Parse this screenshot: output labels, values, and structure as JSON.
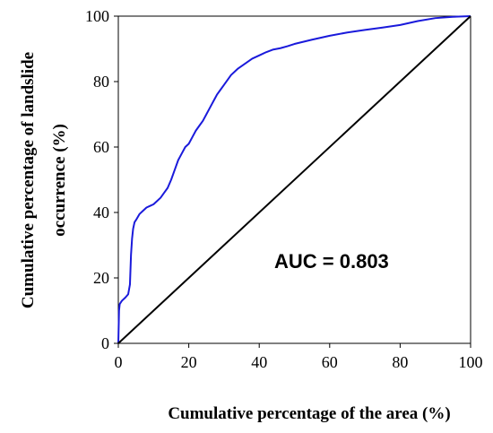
{
  "chart_data": {
    "type": "line",
    "title": "",
    "xlabel": "Cumulative percentage of the area (%)",
    "ylabel_lines": [
      "Cumulative percentage of landslide",
      "occurrence (%)"
    ],
    "xlim": [
      0,
      100
    ],
    "ylim": [
      0,
      100
    ],
    "x_ticks": [
      0,
      20,
      40,
      60,
      80,
      100
    ],
    "y_ticks": [
      0,
      20,
      40,
      60,
      80,
      100
    ],
    "grid": false,
    "annotation": "AUC = 0.803",
    "series": [
      {
        "color": "#1a1adb",
        "x": [
          0,
          0.2,
          0.4,
          1,
          2,
          2.8,
          3.3,
          3.6,
          3.9,
          4.2,
          4.6,
          5.2,
          6,
          7,
          8,
          9,
          10,
          11,
          12,
          13,
          14,
          15,
          16,
          17,
          18,
          19,
          20,
          21,
          22,
          23,
          24,
          25,
          26,
          27,
          28,
          29,
          30,
          31,
          32,
          34,
          36,
          38,
          40,
          42,
          44,
          46,
          48,
          50,
          55,
          60,
          65,
          70,
          75,
          80,
          85,
          90,
          95,
          100
        ],
        "y": [
          0,
          10,
          12,
          13,
          14,
          15,
          18,
          27,
          32,
          35,
          37,
          38,
          39.5,
          40.5,
          41.5,
          42,
          42.5,
          43.5,
          44.5,
          46,
          47.5,
          50,
          53,
          56,
          58,
          60,
          61,
          63,
          65,
          66.5,
          68,
          70,
          72,
          74,
          76,
          77.5,
          79,
          80.5,
          82,
          84,
          85.5,
          87,
          88,
          89,
          89.8,
          90.2,
          90.8,
          91.5,
          92.8,
          94,
          95,
          95.8,
          96.5,
          97.3,
          98.5,
          99.4,
          99.8,
          100
        ]
      },
      {
        "color": "#000000",
        "x": [
          0,
          100
        ],
        "y": [
          0,
          100
        ]
      }
    ]
  }
}
